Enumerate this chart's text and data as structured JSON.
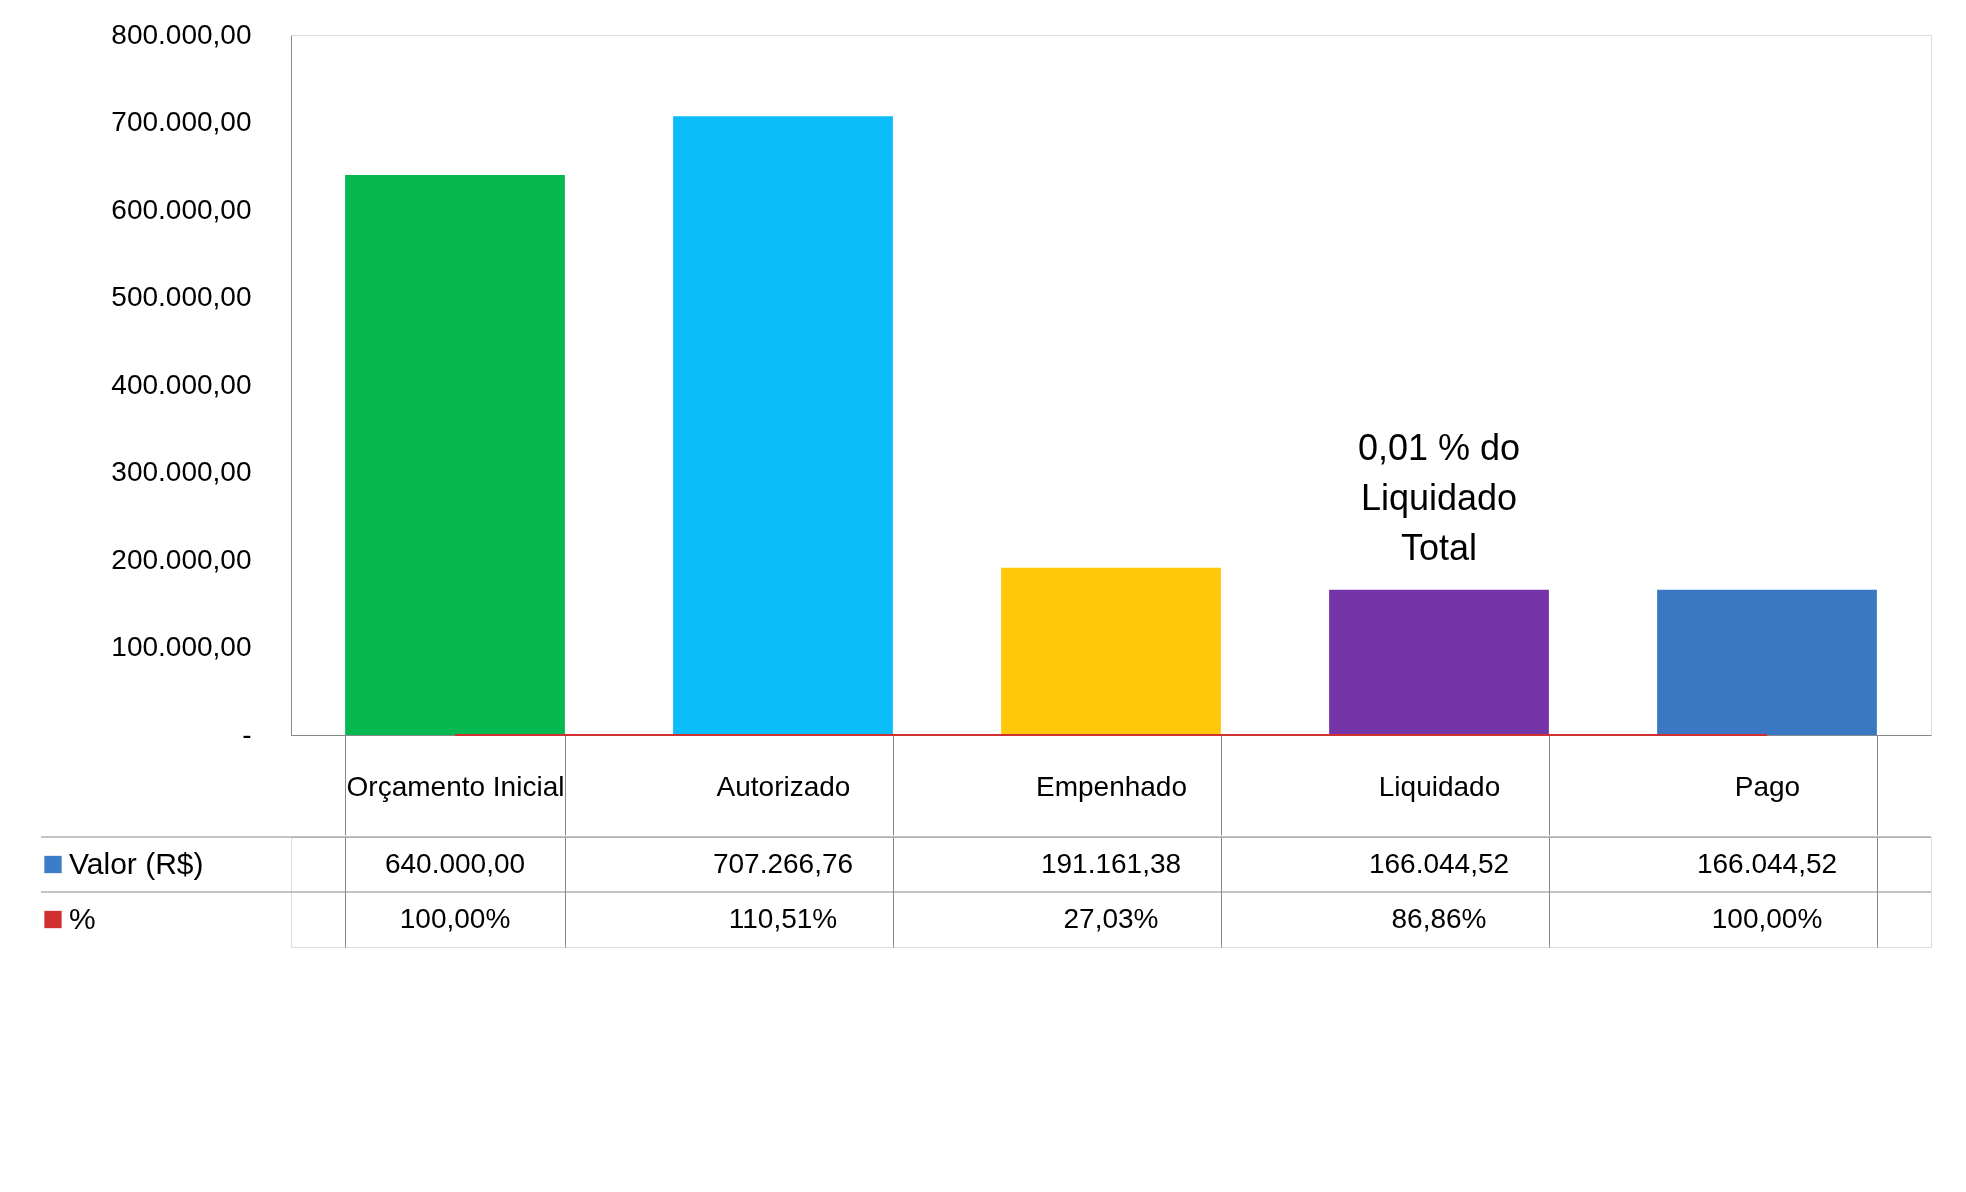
{
  "chart_data": {
    "type": "bar",
    "categories": [
      "Orçamento Inicial",
      "Autorizado",
      "Empenhado",
      "Liquidado",
      "Pago"
    ],
    "series": [
      {
        "name": "Valor (R$)",
        "color": "#3d7cc9",
        "colors": [
          "#05b84f",
          "#0abcf8",
          "#ffc90a",
          "#7434a8",
          "#3a78c4"
        ],
        "values": [
          640000,
          707266.76,
          191161.38,
          166044.52,
          166044.52
        ],
        "value_labels": [
          "640.000,00",
          "707.266,76",
          "191.161,38",
          "166.044,52",
          "166.044,52"
        ]
      },
      {
        "name": "%",
        "type": "line",
        "color": "#d0302f",
        "values": [
          100,
          110.51,
          27.03,
          86.86,
          100
        ],
        "value_labels": [
          "100,00%",
          "110,51%",
          "27,03%",
          "86,86%",
          "100,00%"
        ]
      }
    ],
    "ylim": [
      0,
      800000
    ],
    "yticks": [
      {
        "value": 0,
        "label": "-"
      },
      {
        "value": 100000,
        "label": "100.000,00"
      },
      {
        "value": 200000,
        "label": "200.000,00"
      },
      {
        "value": 300000,
        "label": "300.000,00"
      },
      {
        "value": 400000,
        "label": "400.000,00"
      },
      {
        "value": 500000,
        "label": "500.000,00"
      },
      {
        "value": 600000,
        "label": "600.000,00"
      },
      {
        "value": 700000,
        "label": "700.000,00"
      },
      {
        "value": 800000,
        "label": "800.000,00"
      }
    ],
    "grid": false,
    "legend": "bottom left",
    "annotations": [
      {
        "text": "0,01 % do\nLiquidado\nTotal",
        "x": "Liquidado",
        "y": 166044.52
      }
    ]
  }
}
